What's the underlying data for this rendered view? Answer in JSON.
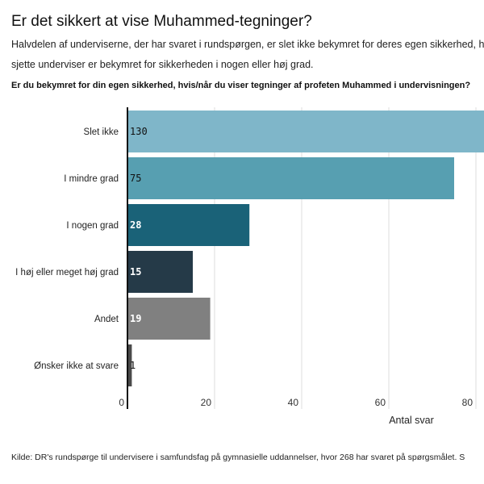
{
  "title": "Er det sikkert at vise Muhammed-tegninger?",
  "subtitle_lines": [
    "Halvdelen af underviserne, der har svaret i rundspørgen, er slet ikke bekymret for deres egen sikkerhed, hvis",
    "sjette underviser er bekymret for sikkerheden i nogen eller høj grad."
  ],
  "question": "Er du bekymret for din egen sikkerhed, hvis/når du viser tegninger af profeten Muhammed i undervisningen?",
  "source": "Kilde: DR's rundspørge til undervisere i samfundsfag på gymnasielle uddannelser, hvor 268 har svaret på spørgsmålet. S",
  "chart_data": {
    "type": "bar",
    "orientation": "horizontal",
    "categories": [
      "Slet ikke",
      "I mindre grad",
      "I nogen grad",
      "I høj eller meget høj grad",
      "Andet",
      "Ønsker ikke at svare"
    ],
    "values": [
      130,
      75,
      28,
      15,
      19,
      1
    ],
    "colors": [
      "#7fb6c9",
      "#579fb1",
      "#1a6278",
      "#253a48",
      "#808080",
      "#4a4a4a"
    ],
    "label_colors": [
      "#111",
      "#111",
      "#fff",
      "#fff",
      "#fff",
      "#111"
    ],
    "xlabel": "Antal svar",
    "xticks": [
      0,
      20,
      40,
      60,
      80
    ],
    "grid": true
  }
}
